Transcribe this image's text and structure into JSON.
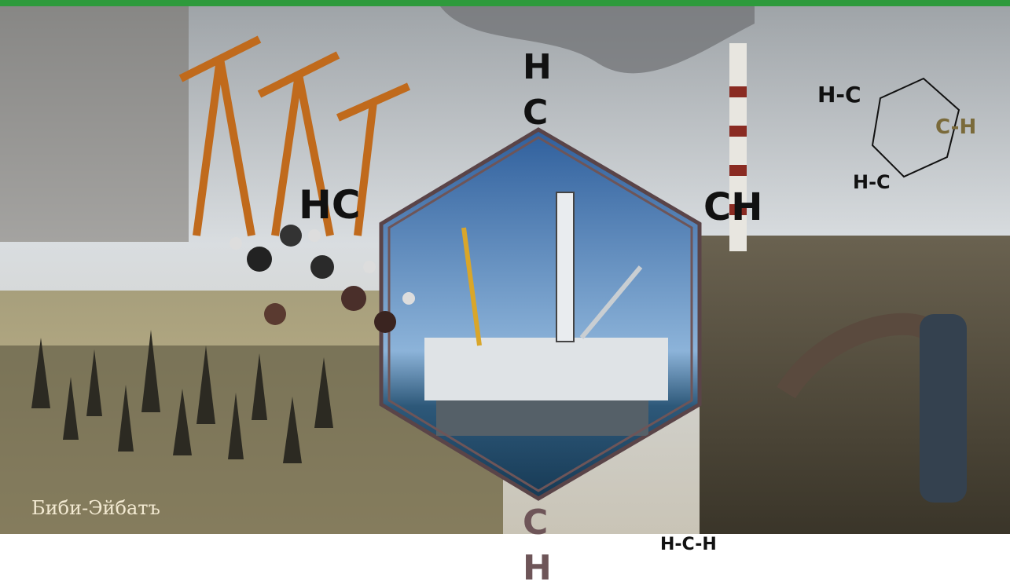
{
  "image": {
    "caption": "Биби-Эйбатъ",
    "labels": [
      "H",
      "C",
      "HC",
      "CH",
      "C",
      "H",
      "H-C",
      "H-C",
      "H-C-H",
      "C-H"
    ]
  }
}
